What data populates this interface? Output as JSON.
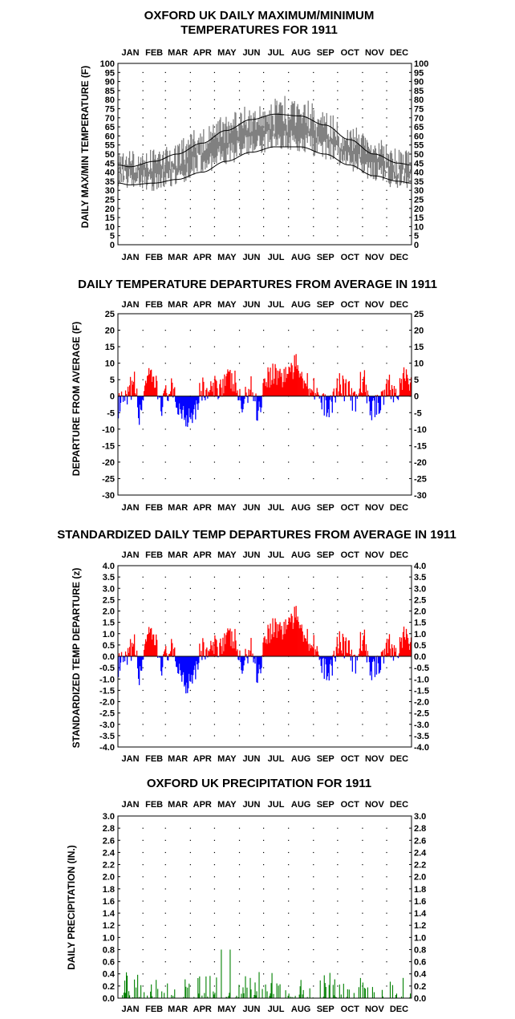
{
  "months": [
    "JAN",
    "FEB",
    "MAR",
    "APR",
    "MAY",
    "JUN",
    "JUL",
    "AUG",
    "SEP",
    "OCT",
    "NOV",
    "DEC"
  ],
  "colors": {
    "above": "#ff0000",
    "below": "#0000ff",
    "temp_band": "#808080",
    "normal_lines": "#000000",
    "precip": "#008000"
  },
  "chart_data": [
    {
      "id": "maxmin",
      "type": "area",
      "title": [
        "OXFORD UK DAILY MAXIMUM/MINIMUM",
        "TEMPERATURES FOR 1911"
      ],
      "ylabel": "DAILY MAX/MIN TEMPERATURE (F)",
      "ylim": [
        0,
        100
      ],
      "yticks": [
        "0",
        "5",
        "10",
        "15",
        "20",
        "25",
        "30",
        "35",
        "40",
        "45",
        "50",
        "55",
        "60",
        "65",
        "70",
        "75",
        "80",
        "85",
        "90",
        "95",
        "100"
      ],
      "month_anchors": {
        "day": [
          1,
          15,
          46,
          74,
          105,
          135,
          166,
          196,
          227,
          258,
          288,
          319,
          349,
          365
        ],
        "tmax": [
          42,
          44,
          45,
          50,
          57,
          64,
          69,
          72,
          71,
          66,
          58,
          51,
          45,
          44
        ],
        "tmin": [
          42,
          36,
          35,
          38,
          45,
          50,
          55,
          58,
          57,
          53,
          46,
          40,
          37,
          36
        ]
      },
      "normal_max": {
        "day": [
          1,
          15,
          46,
          74,
          105,
          135,
          166,
          196,
          227,
          258,
          288,
          319,
          349,
          365
        ],
        "value": [
          44,
          43,
          46,
          50,
          56,
          63,
          69,
          72,
          71,
          66,
          58,
          50,
          45,
          44
        ]
      },
      "normal_min": {
        "day": [
          1,
          15,
          46,
          74,
          105,
          135,
          166,
          196,
          227,
          258,
          288,
          319,
          349,
          365
        ],
        "value": [
          34,
          33,
          34,
          36,
          40,
          46,
          51,
          54,
          54,
          50,
          44,
          38,
          35,
          34
        ]
      },
      "grid": true
    },
    {
      "id": "departures",
      "type": "bar",
      "title": [
        "DAILY TEMPERATURE DEPARTURES FROM AVERAGE IN 1911"
      ],
      "ylabel": "DEPARTURE FROM AVERAGE (F)",
      "ylim": [
        -30,
        25
      ],
      "yticks": [
        "-30",
        "-25",
        "-20",
        "-15",
        "-10",
        "-5",
        "0",
        "5",
        "10",
        "15",
        "20",
        "25"
      ],
      "anchors": {
        "day": [
          1,
          10,
          20,
          28,
          35,
          45,
          55,
          65,
          75,
          85,
          95,
          105,
          115,
          125,
          135,
          145,
          155,
          165,
          175,
          185,
          195,
          205,
          215,
          225,
          235,
          245,
          255,
          265,
          275,
          285,
          295,
          305,
          315,
          325,
          335,
          345,
          355,
          365
        ],
        "value": [
          -3,
          -2,
          4,
          -6,
          5,
          4,
          -2,
          2,
          -3,
          -6,
          -4,
          2,
          1,
          3,
          5,
          4,
          -3,
          3,
          -4,
          6,
          7,
          6,
          8,
          9,
          4,
          3,
          -3,
          -3,
          4,
          2,
          -2,
          5,
          -4,
          -2,
          3,
          1,
          5,
          4
        ]
      },
      "grid": true
    },
    {
      "id": "standardized",
      "type": "bar",
      "title": [
        "STANDARDIZED DAILY TEMP DEPARTURES FROM AVERAGE IN 1911"
      ],
      "ylabel": "STANDARDIZED TEMP DEPARTURE (z)",
      "ylim": [
        -4,
        4
      ],
      "yticks": [
        "-4.0",
        "-3.5",
        "-3.0",
        "-2.5",
        "-2.0",
        "-1.5",
        "-1.0",
        "-0.5",
        "0.0",
        "0.5",
        "1.0",
        "1.5",
        "2.0",
        "2.5",
        "3.0",
        "3.5",
        "4.0"
      ],
      "anchors": {
        "day": [
          1,
          10,
          20,
          28,
          35,
          45,
          55,
          65,
          75,
          85,
          95,
          105,
          115,
          125,
          135,
          145,
          155,
          165,
          175,
          185,
          195,
          205,
          215,
          225,
          235,
          245,
          255,
          265,
          275,
          285,
          295,
          305,
          315,
          325,
          335,
          345,
          355,
          365
        ],
        "value": [
          -0.4,
          -0.3,
          0.5,
          -0.9,
          0.8,
          0.7,
          -0.3,
          0.3,
          -0.4,
          -1.2,
          -0.6,
          0.3,
          0.2,
          0.5,
          0.8,
          0.7,
          -0.5,
          0.4,
          -0.7,
          1.0,
          1.3,
          1.2,
          1.6,
          1.7,
          0.8,
          0.6,
          -0.6,
          -0.6,
          0.7,
          0.4,
          -0.4,
          0.8,
          -0.6,
          -0.3,
          0.5,
          0.2,
          0.8,
          0.6
        ]
      },
      "grid": true
    },
    {
      "id": "precip",
      "type": "bar",
      "title": [
        "OXFORD UK PRECIPITATION FOR 1911"
      ],
      "ylabel": "DAILY PRECIPITATION (IN.)",
      "ylim": [
        0,
        3
      ],
      "yticks": [
        "0.0",
        "0.2",
        "0.4",
        "0.6",
        "0.8",
        "1.0",
        "1.2",
        "1.4",
        "1.6",
        "1.8",
        "2.0",
        "2.2",
        "2.4",
        "2.6",
        "2.8",
        "3.0"
      ],
      "grid": true
    }
  ]
}
